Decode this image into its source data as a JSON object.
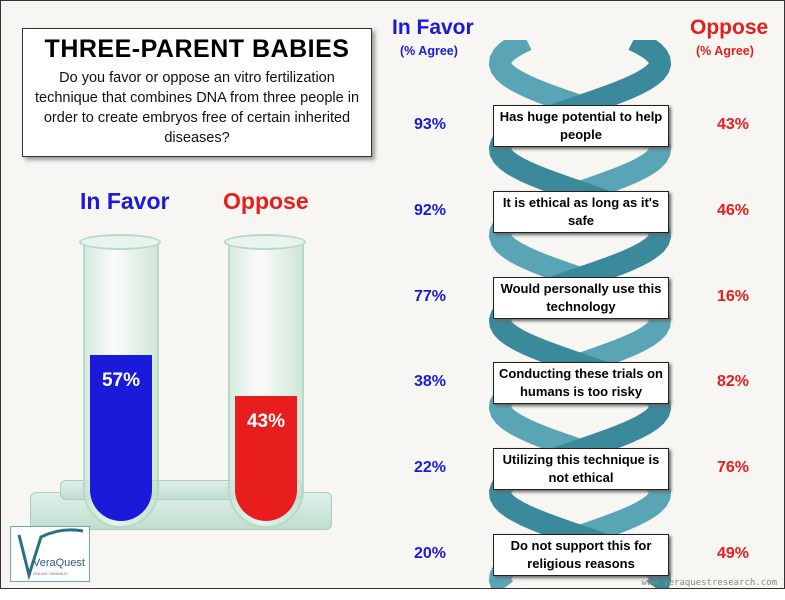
{
  "title": "THREE-PARENT BABIES",
  "question": "Do you favor or oppose an vitro fertilization technique that combines DNA from three people in order to create embryos free of certain inherited diseases?",
  "colors": {
    "favor": "#1a1adb",
    "oppose": "#e81d1d",
    "helix": "#3a8a9c"
  },
  "chart_data": [
    {
      "type": "bar",
      "title": "",
      "categories": [
        "In Favor",
        "Oppose"
      ],
      "values": [
        57,
        43
      ],
      "value_labels": [
        "57%",
        "43%"
      ],
      "ylim": [
        0,
        100
      ]
    },
    {
      "type": "table",
      "columns": [
        "In Favor",
        "Oppose"
      ],
      "column_subtitles": [
        "(% Agree)",
        "(% Agree)"
      ],
      "rows": [
        {
          "statement": "Has huge potential to help people",
          "favor": "93%",
          "oppose": "43%"
        },
        {
          "statement": "It is ethical as long as it's safe",
          "favor": "92%",
          "oppose": "46%"
        },
        {
          "statement": "Would personally use this technology",
          "favor": "77%",
          "oppose": "16%"
        },
        {
          "statement": "Conducting these trials on humans is too risky",
          "favor": "38%",
          "oppose": "82%"
        },
        {
          "statement": "Utilizing this technique is not ethical",
          "favor": "22%",
          "oppose": "76%"
        },
        {
          "statement": "Do not support this for religious reasons",
          "favor": "20%",
          "oppose": "49%"
        }
      ]
    }
  ],
  "logo": {
    "name": "VeraQuest",
    "tagline": "ONLINE OMNIBUS"
  },
  "url": "www.veraquestresearch.com"
}
